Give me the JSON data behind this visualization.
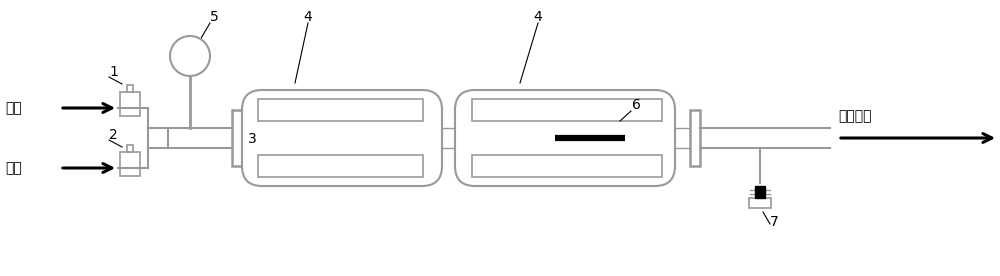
{
  "bg_color": "#ffffff",
  "lc": "#999999",
  "bk": "#000000",
  "label_1": "1",
  "label_2": "2",
  "label_3": "3",
  "label_4a": "4",
  "label_4b": "4",
  "label_5": "5",
  "label_6": "6",
  "label_7": "7",
  "text_hydrogen": "氢气",
  "text_methane": "甲烷",
  "text_vacuum": "接真空泵",
  "fig_w": 10.0,
  "fig_h": 2.76,
  "dpi": 100
}
